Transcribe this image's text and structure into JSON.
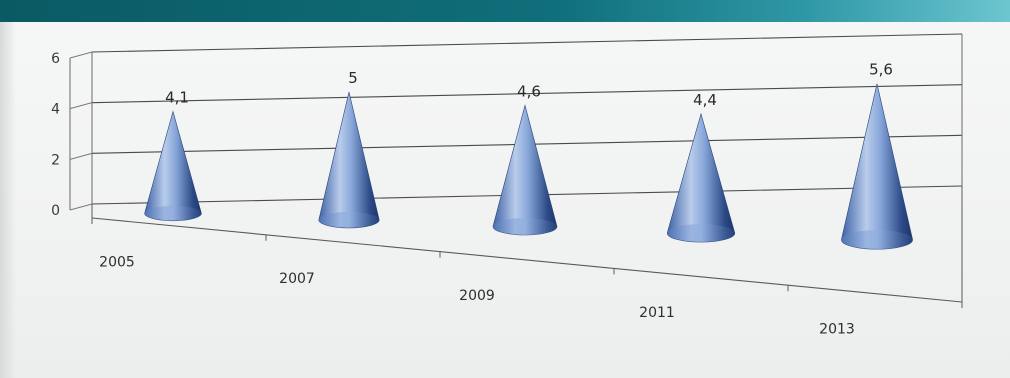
{
  "colors": {
    "top_banner": "#0f6f7a",
    "cone_light": "#b9cdeb",
    "cone_mid": "#5f86c4",
    "cone_dark": "#1c3566",
    "gridline": "#4a4a4a"
  },
  "chart_data": {
    "type": "bar",
    "bar_shape": "cone",
    "three_d": true,
    "categories": [
      "2005",
      "2007",
      "2009",
      "2011",
      "2013"
    ],
    "values": [
      4.1,
      5,
      4.6,
      4.4,
      5.6
    ],
    "data_labels": [
      "4,1",
      "5",
      "4,6",
      "4,4",
      "5,6"
    ],
    "title": "",
    "xlabel": "",
    "ylabel": "",
    "ylim": [
      0,
      6
    ],
    "yticks": [
      0,
      2,
      4,
      6
    ],
    "grid": true,
    "legend": "none"
  }
}
